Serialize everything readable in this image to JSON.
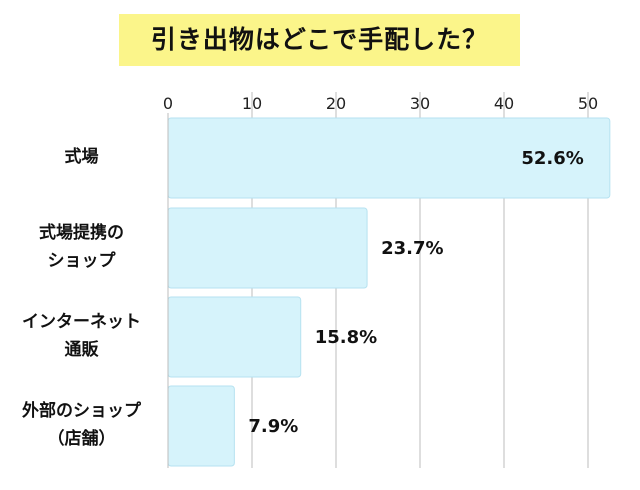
{
  "chart_data": {
    "type": "bar",
    "orientation": "horizontal",
    "title": "引き出物はどこで手配した？",
    "categories": [
      "式場",
      "式場提携のショップ",
      "インターネット通販",
      "外部のショップ（店舗）"
    ],
    "category_lines": [
      [
        "式場"
      ],
      [
        "式場提携の",
        "ショップ"
      ],
      [
        "インターネット",
        "通販"
      ],
      [
        "外部のショップ",
        "（店舗）"
      ]
    ],
    "values": [
      52.6,
      23.7,
      15.8,
      7.9
    ],
    "value_labels": [
      "52.6%",
      "23.7%",
      "15.8%",
      "7.9%"
    ],
    "x_ticks": [
      "0",
      "10",
      "20",
      "30",
      "40",
      "50"
    ],
    "xlim": [
      0,
      52.6
    ],
    "grid": true,
    "colors": {
      "bar_fill": "#d6f3fb",
      "bar_stroke": "#b6e2f0",
      "grid": "#bdbdbd",
      "title_bg": "#fbf58a"
    }
  }
}
